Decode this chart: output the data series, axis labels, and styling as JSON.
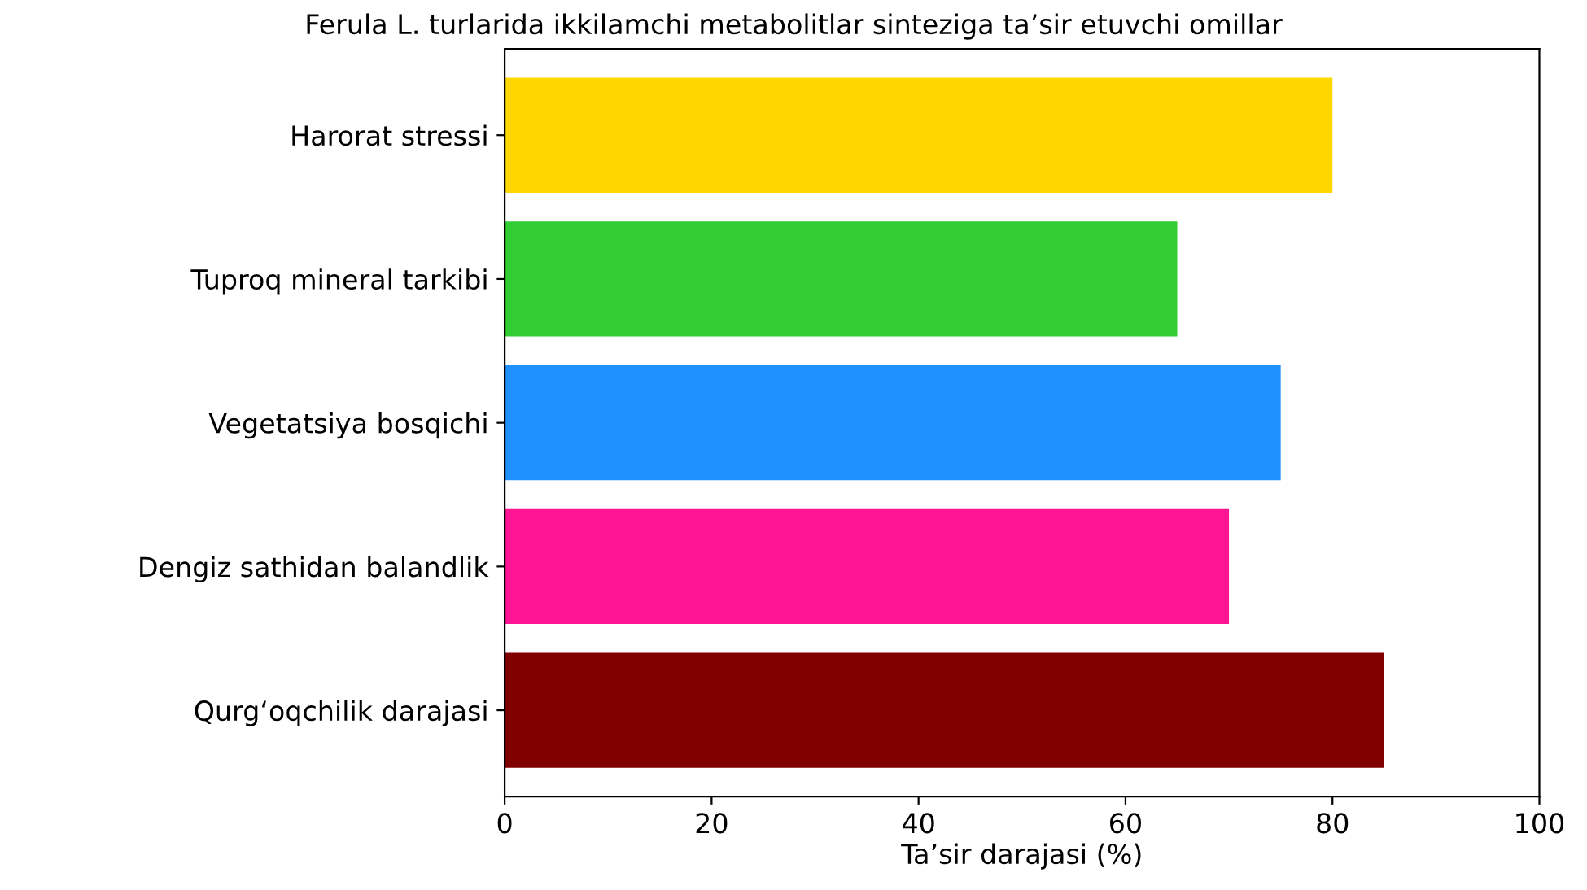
{
  "chart_data": {
    "type": "bar",
    "orientation": "horizontal",
    "title": "Ferula L. turlarida ikkilamchi metabolitlar sinteziga ta’sir etuvchi omillar",
    "xlabel": "Ta’sir darajasi (%)",
    "categories": [
      "Harorat stressi",
      "Tuproq mineral tarkibi",
      "Vegetatsiya bosqichi",
      "Dengiz sathidan balandlik",
      "Qurg‘oqchilik darajasi"
    ],
    "values": [
      80,
      65,
      75,
      70,
      85
    ],
    "colors": [
      "#ffd700",
      "#32cd32",
      "#1e90ff",
      "#ff1493",
      "#800000"
    ],
    "xlim": [
      0,
      100
    ],
    "xticks": [
      0,
      20,
      40,
      60,
      80,
      100
    ],
    "grid": false
  }
}
